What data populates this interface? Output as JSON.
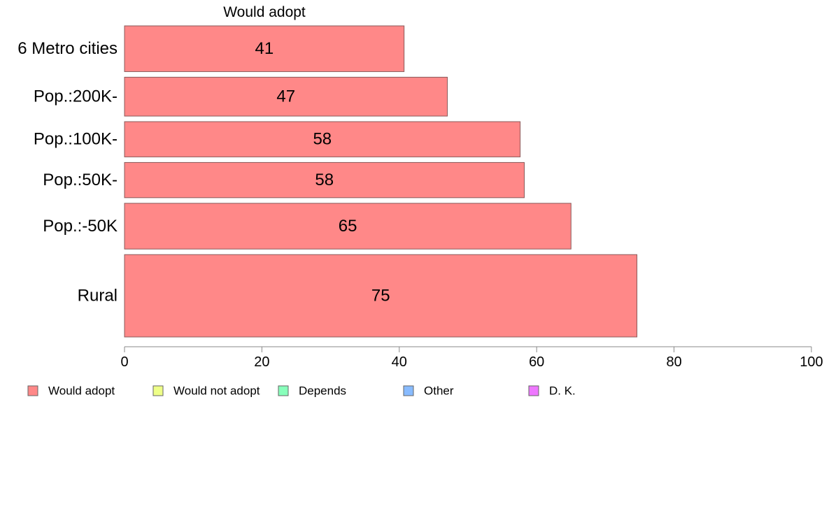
{
  "chart_data": {
    "type": "bar",
    "orientation": "horizontal",
    "stacked": true,
    "series_label": "Would adopt",
    "categories": [
      "6 Metro cities",
      "Pop.:200K-",
      "Pop.:100K-",
      "Pop.:50K-",
      "Pop.:-50K",
      "Rural"
    ],
    "series": [
      {
        "name": "Would adopt",
        "color": "#ff8888",
        "values": [
          40.7,
          47.0,
          57.6,
          58.2,
          65.0,
          74.6
        ],
        "labels": [
          "41",
          "47",
          "58",
          "58",
          "65",
          "75"
        ]
      }
    ],
    "bar_width_weights": [
      1.0,
      0.85,
      0.77,
      0.77,
      1.0,
      1.8
    ],
    "xlim": [
      0,
      100
    ],
    "xticks": [
      0,
      20,
      40,
      60,
      80,
      100
    ],
    "grid": false,
    "legend_position": "bottom",
    "legend": [
      {
        "label": "Would adopt",
        "color": "#ff8888"
      },
      {
        "label": "Would not adopt",
        "color": "#eeff88"
      },
      {
        "label": "Depends",
        "color": "#88ffbb"
      },
      {
        "label": "Other",
        "color": "#88bbff"
      },
      {
        "label": "D. K.",
        "color": "#ee77ff"
      }
    ]
  }
}
